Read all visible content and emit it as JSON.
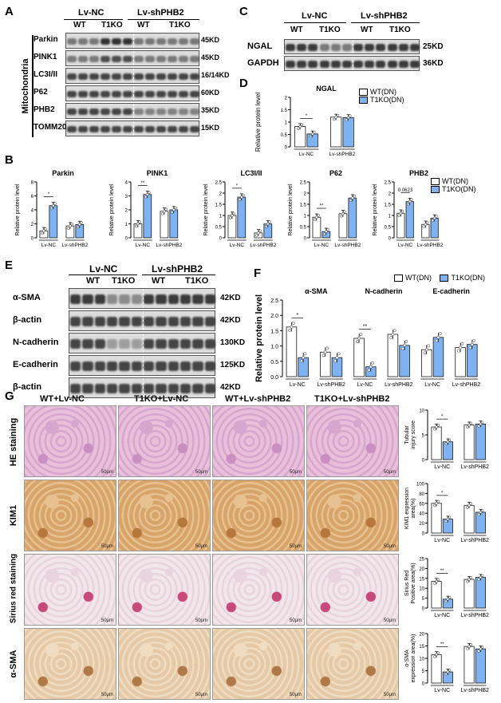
{
  "panelA": {
    "letter": "A",
    "groups": [
      "Lv-NC",
      "Lv-shPHB2"
    ],
    "subgroups": [
      "WT",
      "T1KO",
      "WT",
      "T1KO"
    ],
    "side_label": "Mitochondria",
    "rows": [
      {
        "name": "Parkin",
        "kd": "45KD"
      },
      {
        "name": "PINK1",
        "kd": "45KD"
      },
      {
        "name": "LC3I/II",
        "kd": "16/14KD"
      },
      {
        "name": "P62",
        "kd": "60KD"
      },
      {
        "name": "PHB2",
        "kd": "35KD"
      },
      {
        "name": "TOMM20",
        "kd": "15KD"
      }
    ]
  },
  "panelC": {
    "letter": "C",
    "groups": [
      "Lv-NC",
      "Lv-shPHB2"
    ],
    "subgroups": [
      "WT",
      "T1KO",
      "WT",
      "T1KO"
    ],
    "rows": [
      {
        "name": "NGAL",
        "kd": "25KD"
      },
      {
        "name": "GAPDH",
        "kd": "36KD"
      }
    ]
  },
  "panelD": {
    "letter": "D",
    "legend": [
      "WT(DN)",
      "T1KO(DN)"
    ]
  },
  "panelB": {
    "letter": "B",
    "legend": [
      "WT(DN)",
      "T1KO(DN)"
    ]
  },
  "panelE": {
    "letter": "E",
    "groups": [
      "Lv-NC",
      "Lv-shPHB2"
    ],
    "subgroups": [
      "WT",
      "T1KO",
      "WT",
      "T1KO"
    ],
    "rows": [
      {
        "name": "α-SMA",
        "kd": "42KD"
      },
      {
        "name": "β-actin",
        "kd": "42KD"
      },
      {
        "name": "N-cadherin",
        "kd": "130KD"
      },
      {
        "name": "E-cadherin",
        "kd": "125KD"
      },
      {
        "name": "β-actin",
        "kd": "42KD"
      }
    ]
  },
  "panelF": {
    "letter": "F",
    "legend": [
      "WT(DN)",
      "T1KO(DN)"
    ],
    "ylabel": "Relative protein level"
  },
  "panelG": {
    "letter": "G",
    "columns": [
      "WT+Lv-NC",
      "T1KO+Lv-NC",
      "WT+Lv-shPHB2",
      "T1KO+Lv-shPHB2"
    ],
    "rows": [
      "HE staining",
      "KIM1",
      "Sirius red staining",
      "α-SMA"
    ],
    "scale_bar": "50μm"
  },
  "colors": {
    "wt": "#ffffff",
    "t1ko": "#7fb2f0",
    "stroke": "#1a1a1a"
  },
  "chart_data": [
    {
      "id": "D",
      "type": "bar",
      "title": "NGAL",
      "ylabel": "Relative protein level",
      "categories": [
        "Lv-NC",
        "Lv-shPHB2"
      ],
      "ylim": [
        0,
        2.0
      ],
      "yticks": [
        0,
        0.5,
        1.0,
        1.5,
        2.0
      ],
      "series": [
        {
          "name": "WT(DN)",
          "values": [
            0.82,
            1.2
          ]
        },
        {
          "name": "T1KO(DN)",
          "values": [
            0.52,
            1.18
          ]
        }
      ],
      "sig": [
        {
          "group": 0,
          "text": "*"
        }
      ]
    },
    {
      "id": "B1",
      "type": "bar",
      "title": "Parkin",
      "ylabel": "Relative protein level",
      "categories": [
        "Lv-NC",
        "Lv-shPHB2"
      ],
      "ylim": [
        0,
        8
      ],
      "yticks": [
        0,
        2,
        4,
        6,
        8
      ],
      "series": [
        {
          "name": "WT(DN)",
          "values": [
            1.0,
            1.7
          ]
        },
        {
          "name": "T1KO(DN)",
          "values": [
            4.6,
            1.9
          ]
        }
      ],
      "sig": [
        {
          "group": 0,
          "text": "*"
        }
      ]
    },
    {
      "id": "B2",
      "type": "bar",
      "title": "PINK1",
      "ylabel": "Relative protein level",
      "categories": [
        "Lv-NC",
        "Lv-shPHB2"
      ],
      "ylim": [
        0,
        4
      ],
      "yticks": [
        0,
        1,
        2,
        3,
        4
      ],
      "series": [
        {
          "name": "WT(DN)",
          "values": [
            1.0,
            1.9
          ]
        },
        {
          "name": "T1KO(DN)",
          "values": [
            3.1,
            2.0
          ]
        }
      ],
      "sig": [
        {
          "group": 0,
          "text": "**"
        }
      ]
    },
    {
      "id": "B3",
      "type": "bar",
      "title": "LC3I/II",
      "ylabel": "Relative protein level",
      "categories": [
        "Lv-NC",
        "Lv-shPHB2"
      ],
      "ylim": [
        0,
        2.5
      ],
      "yticks": [
        0,
        0.5,
        1.0,
        1.5,
        2.0,
        2.5
      ],
      "series": [
        {
          "name": "WT(DN)",
          "values": [
            1.0,
            0.22
          ]
        },
        {
          "name": "T1KO(DN)",
          "values": [
            1.82,
            0.62
          ]
        }
      ],
      "sig": [
        {
          "group": 0,
          "text": "*"
        }
      ]
    },
    {
      "id": "B4",
      "type": "bar",
      "title": "P62",
      "ylabel": "Relative protein level",
      "categories": [
        "Lv-NC",
        "Lv-shPHB2"
      ],
      "ylim": [
        0,
        2.5
      ],
      "yticks": [
        0,
        0.5,
        1.0,
        1.5,
        2.0,
        2.5
      ],
      "series": [
        {
          "name": "WT(DN)",
          "values": [
            0.92,
            1.08
          ]
        },
        {
          "name": "T1KO(DN)",
          "values": [
            0.28,
            1.78
          ]
        }
      ],
      "sig": [
        {
          "group": 0,
          "text": "**"
        }
      ]
    },
    {
      "id": "B5",
      "type": "bar",
      "title": "PHB2",
      "ylabel": "Relative protein level",
      "categories": [
        "Lv-NC",
        "Lv-shPHB2"
      ],
      "ylim": [
        0,
        2.5
      ],
      "yticks": [
        0,
        0.5,
        1.0,
        1.5,
        2.0,
        2.5
      ],
      "series": [
        {
          "name": "WT(DN)",
          "values": [
            1.1,
            0.6
          ]
        },
        {
          "name": "T1KO(DN)",
          "values": [
            1.62,
            0.88
          ]
        }
      ],
      "sig": [
        {
          "group": 0,
          "text": "0.0623"
        }
      ]
    },
    {
      "id": "F",
      "type": "bar",
      "ylabel": "Relative protein level",
      "ylim": [
        0,
        2.5
      ],
      "yticks": [
        0.0,
        0.5,
        1.0,
        1.5,
        2.0,
        2.5
      ],
      "subcharts": [
        {
          "title": "α-SMA",
          "categories": [
            "Lv-NC",
            "Lv-shPHB2"
          ],
          "series": [
            {
              "name": "WT(DN)",
              "values": [
                1.62,
                0.8
              ]
            },
            {
              "name": "T1KO(DN)",
              "values": [
                0.62,
                0.62
              ]
            }
          ],
          "sig": [
            {
              "group": 0,
              "text": "*"
            }
          ]
        },
        {
          "title": "N-cadherin",
          "categories": [
            "Lv-NC",
            "Lv-shPHB2"
          ],
          "series": [
            {
              "name": "WT(DN)",
              "values": [
                1.25,
                1.38
              ]
            },
            {
              "name": "T1KO(DN)",
              "values": [
                0.32,
                1.02
              ]
            }
          ],
          "sig": [
            {
              "group": 0,
              "text": "**"
            }
          ]
        },
        {
          "title": "E-cadherin",
          "categories": [
            "Lv-NC",
            "Lv-shPHB2"
          ],
          "series": [
            {
              "name": "WT(DN)",
              "values": [
                0.88,
                0.95
              ]
            },
            {
              "name": "T1KO(DN)",
              "values": [
                1.28,
                1.05
              ]
            }
          ],
          "sig": []
        }
      ]
    },
    {
      "id": "G1",
      "type": "bar",
      "ylabel": "Tubular injury score",
      "categories": [
        "Lv-NC",
        "Lv-shPHB2"
      ],
      "ylim": [
        0,
        10
      ],
      "yticks": [
        0,
        5,
        10
      ],
      "series": [
        {
          "name": "WT(DN)",
          "values": [
            6.6,
            7.0
          ]
        },
        {
          "name": "T1KO(DN)",
          "values": [
            3.6,
            7.2
          ]
        }
      ],
      "sig": [
        {
          "group": 0,
          "text": "*"
        }
      ]
    },
    {
      "id": "G2",
      "type": "bar",
      "ylabel": "KIM1 expression area(%)",
      "categories": [
        "Lv-NC",
        "Lv-shPHB2"
      ],
      "ylim": [
        0,
        100
      ],
      "yticks": [
        0,
        20,
        40,
        60,
        80,
        100
      ],
      "series": [
        {
          "name": "WT(DN)",
          "values": [
            60,
            56
          ]
        },
        {
          "name": "T1KO(DN)",
          "values": [
            28,
            42
          ]
        }
      ],
      "sig": [
        {
          "group": 0,
          "text": "*"
        }
      ]
    },
    {
      "id": "G3",
      "type": "bar",
      "ylabel": "Sirius Red Positive area(%)",
      "categories": [
        "Lv-NC",
        "Lv-shPHB2"
      ],
      "ylim": [
        0,
        25
      ],
      "yticks": [
        0,
        5,
        10,
        15,
        20,
        25
      ],
      "series": [
        {
          "name": "WT(DN)",
          "values": [
            13.5,
            14.5
          ]
        },
        {
          "name": "T1KO(DN)",
          "values": [
            4.5,
            15.5
          ]
        }
      ],
      "sig": [
        {
          "group": 0,
          "text": "**"
        }
      ]
    },
    {
      "id": "G4",
      "type": "bar",
      "ylabel": "α-SMA expression area(%)",
      "categories": [
        "Lv-NC",
        "Lv-shPHB2"
      ],
      "ylim": [
        0,
        20
      ],
      "yticks": [
        0,
        5,
        10,
        15,
        20
      ],
      "series": [
        {
          "name": "WT(DN)",
          "values": [
            11.5,
            14.8
          ]
        },
        {
          "name": "T1KO(DN)",
          "values": [
            4.5,
            13.8
          ]
        }
      ],
      "sig": [
        {
          "group": 0,
          "text": "**"
        }
      ]
    }
  ]
}
